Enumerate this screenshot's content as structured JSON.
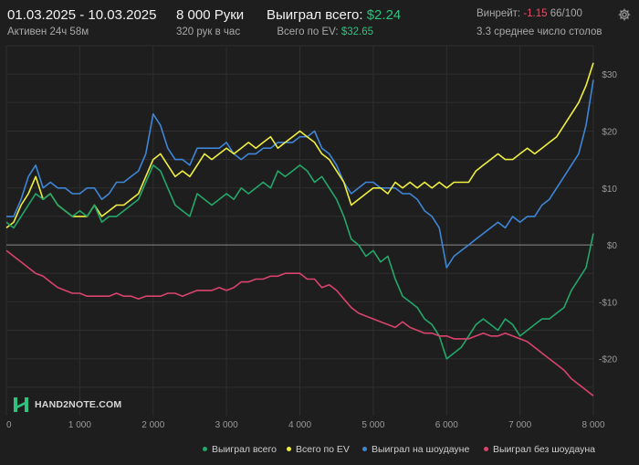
{
  "header": {
    "date_range": "01.03.2025 - 10.03.2025",
    "active_time": "Активен 24ч 58м",
    "hands": "8 000 Руки",
    "hands_per_hour": "320 рук в час",
    "won_total_label": "Выиграл всего:",
    "won_total_value": "$2.24",
    "ev_total_label": "Всего по EV:",
    "ev_total_value": "$32.65",
    "winrate_label": "Винрейт:",
    "winrate_value": "-1.15",
    "winrate_count": "66/100",
    "avg_tables": "3.3 среднее число столов"
  },
  "watermark": "HAND2NOTE.COM",
  "colors": {
    "background": "#1e1e1e",
    "won_total": "#23a86a",
    "ev_total": "#f0f040",
    "won_showdown": "#3f86d8",
    "won_no_showdown": "#d9436d",
    "positive": "#2ec27e",
    "negative": "#e0506a"
  },
  "legend": [
    {
      "key": "won_total",
      "label": "Выиграл всего",
      "color": "#23a86a"
    },
    {
      "key": "ev_total",
      "label": "Всего по EV",
      "color": "#f0f040"
    },
    {
      "key": "won_showdown",
      "label": "Выиграл на шоудауне",
      "color": "#3f86d8"
    },
    {
      "key": "won_no_showdown",
      "label": "Выиграл без шоудауна",
      "color": "#d9436d"
    }
  ],
  "chart_data": {
    "type": "line",
    "xlim": [
      0,
      8000
    ],
    "ylim": [
      -30,
      35
    ],
    "x_ticks": [
      0,
      1000,
      2000,
      3000,
      4000,
      5000,
      6000,
      7000,
      8000
    ],
    "x_tick_labels": [
      "0",
      "1 000",
      "2 000",
      "3 000",
      "4 000",
      "5 000",
      "6 000",
      "7 000",
      "8 000"
    ],
    "y_ticks": [
      -20,
      -10,
      0,
      10,
      20,
      30
    ],
    "y_tick_labels": [
      "-$20",
      "-$10",
      "$0",
      "$10",
      "$20",
      "$30"
    ],
    "grid": true,
    "legend_position": "bottom-right",
    "series": [
      {
        "key": "won_total",
        "name": "Выиграл всего",
        "x": [
          0,
          100,
          200,
          300,
          400,
          500,
          600,
          700,
          800,
          900,
          1000,
          1100,
          1200,
          1300,
          1400,
          1500,
          1600,
          1700,
          1800,
          1900,
          2000,
          2100,
          2200,
          2300,
          2400,
          2500,
          2600,
          2700,
          2800,
          2900,
          3000,
          3100,
          3200,
          3300,
          3400,
          3500,
          3600,
          3700,
          3800,
          3900,
          4000,
          4100,
          4200,
          4300,
          4400,
          4500,
          4600,
          4700,
          4800,
          4900,
          5000,
          5100,
          5200,
          5300,
          5400,
          5500,
          5600,
          5700,
          5800,
          5900,
          6000,
          6100,
          6200,
          6300,
          6400,
          6500,
          6600,
          6700,
          6800,
          6900,
          7000,
          7100,
          7200,
          7300,
          7400,
          7500,
          7600,
          7700,
          7800,
          7900,
          8000
        ],
        "y": [
          4,
          3,
          5,
          7,
          9,
          8,
          9,
          7,
          6,
          5,
          6,
          5,
          7,
          4,
          5,
          5,
          6,
          7,
          8,
          11,
          14,
          13,
          10,
          7,
          6,
          5,
          9,
          8,
          7,
          8,
          9,
          8,
          10,
          9,
          10,
          11,
          10,
          13,
          12,
          13,
          14,
          13,
          11,
          12,
          10,
          8,
          5,
          1,
          0,
          -2,
          -1,
          -3,
          -2,
          -6,
          -9,
          -10,
          -11,
          -13,
          -14,
          -16,
          -20,
          -19,
          -18,
          -16,
          -14,
          -13,
          -14,
          -15,
          -13,
          -14,
          -16,
          -15,
          -14,
          -13,
          -13,
          -12,
          -11,
          -8,
          -6,
          -4,
          2
        ]
      },
      {
        "key": "ev_total",
        "name": "Всего по EV",
        "x": [
          0,
          100,
          200,
          300,
          400,
          500,
          600,
          700,
          800,
          900,
          1000,
          1100,
          1200,
          1300,
          1400,
          1500,
          1600,
          1700,
          1800,
          1900,
          2000,
          2100,
          2200,
          2300,
          2400,
          2500,
          2600,
          2700,
          2800,
          2900,
          3000,
          3100,
          3200,
          3300,
          3400,
          3500,
          3600,
          3700,
          3800,
          3900,
          4000,
          4100,
          4200,
          4300,
          4400,
          4500,
          4600,
          4700,
          4800,
          4900,
          5000,
          5100,
          5200,
          5300,
          5400,
          5500,
          5600,
          5700,
          5800,
          5900,
          6000,
          6100,
          6200,
          6300,
          6400,
          6500,
          6600,
          6700,
          6800,
          6900,
          7000,
          7100,
          7200,
          7300,
          7400,
          7500,
          7600,
          7700,
          7800,
          7900,
          8000
        ],
        "y": [
          3,
          4,
          7,
          9,
          12,
          8,
          9,
          7,
          6,
          5,
          5,
          5,
          7,
          5,
          6,
          7,
          7,
          8,
          9,
          12,
          15,
          16,
          14,
          12,
          13,
          12,
          14,
          16,
          15,
          16,
          17,
          16,
          17,
          18,
          17,
          18,
          19,
          17,
          18,
          19,
          20,
          19,
          18,
          16,
          15,
          13,
          11,
          7,
          8,
          9,
          10,
          10,
          9,
          11,
          10,
          11,
          10,
          11,
          10,
          11,
          10,
          11,
          11,
          11,
          13,
          14,
          15,
          16,
          15,
          15,
          16,
          17,
          16,
          17,
          18,
          19,
          21,
          23,
          25,
          28,
          32
        ]
      },
      {
        "key": "won_showdown",
        "name": "Выиграл на шоудауне",
        "x": [
          0,
          100,
          200,
          300,
          400,
          500,
          600,
          700,
          800,
          900,
          1000,
          1100,
          1200,
          1300,
          1400,
          1500,
          1600,
          1700,
          1800,
          1900,
          2000,
          2100,
          2200,
          2300,
          2400,
          2500,
          2600,
          2700,
          2800,
          2900,
          3000,
          3100,
          3200,
          3300,
          3400,
          3500,
          3600,
          3700,
          3800,
          3900,
          4000,
          4100,
          4200,
          4300,
          4400,
          4500,
          4600,
          4700,
          4800,
          4900,
          5000,
          5100,
          5200,
          5300,
          5400,
          5500,
          5600,
          5700,
          5800,
          5900,
          6000,
          6100,
          6200,
          6300,
          6400,
          6500,
          6600,
          6700,
          6800,
          6900,
          7000,
          7100,
          7200,
          7300,
          7400,
          7500,
          7600,
          7700,
          7800,
          7900,
          8000
        ],
        "y": [
          5,
          5,
          8,
          12,
          14,
          10,
          11,
          10,
          10,
          9,
          9,
          10,
          10,
          8,
          9,
          11,
          11,
          12,
          13,
          16,
          23,
          21,
          17,
          15,
          15,
          14,
          17,
          17,
          17,
          17,
          18,
          16,
          15,
          16,
          16,
          17,
          17,
          18,
          18,
          18,
          19,
          19,
          20,
          17,
          16,
          14,
          11,
          9,
          10,
          11,
          11,
          10,
          10,
          10,
          9,
          9,
          8,
          6,
          5,
          3,
          -4,
          -2,
          -1,
          0,
          1,
          2,
          3,
          4,
          3,
          5,
          4,
          5,
          5,
          7,
          8,
          10,
          12,
          14,
          16,
          21,
          29
        ]
      },
      {
        "key": "won_no_showdown",
        "name": "Выиграл без шоудауна",
        "x": [
          0,
          100,
          200,
          300,
          400,
          500,
          600,
          700,
          800,
          900,
          1000,
          1100,
          1200,
          1300,
          1400,
          1500,
          1600,
          1700,
          1800,
          1900,
          2000,
          2100,
          2200,
          2300,
          2400,
          2500,
          2600,
          2700,
          2800,
          2900,
          3000,
          3100,
          3200,
          3300,
          3400,
          3500,
          3600,
          3700,
          3800,
          3900,
          4000,
          4100,
          4200,
          4300,
          4400,
          4500,
          4600,
          4700,
          4800,
          4900,
          5000,
          5100,
          5200,
          5300,
          5400,
          5500,
          5600,
          5700,
          5800,
          5900,
          6000,
          6100,
          6200,
          6300,
          6400,
          6500,
          6600,
          6700,
          6800,
          6900,
          7000,
          7100,
          7200,
          7300,
          7400,
          7500,
          7600,
          7700,
          7800,
          7900,
          8000
        ],
        "y": [
          -1,
          -2,
          -3,
          -4,
          -5,
          -5.5,
          -6.5,
          -7.5,
          -8,
          -8.5,
          -8.5,
          -9,
          -9,
          -9,
          -9,
          -8.5,
          -9,
          -9,
          -9.5,
          -9,
          -9,
          -9,
          -8.5,
          -8.5,
          -9,
          -8.5,
          -8,
          -8,
          -8,
          -7.5,
          -8,
          -7.5,
          -6.5,
          -6.5,
          -6,
          -6,
          -5.5,
          -5.5,
          -5,
          -5,
          -5,
          -6,
          -6,
          -7.5,
          -7,
          -8,
          -9.5,
          -11,
          -12,
          -12.5,
          -13,
          -13.5,
          -14,
          -14.5,
          -13.5,
          -14.5,
          -15,
          -15.5,
          -15.5,
          -16,
          -16,
          -16.5,
          -16.5,
          -16.5,
          -16,
          -15.5,
          -16,
          -16,
          -15.5,
          -16,
          -16.5,
          -17,
          -18,
          -19,
          -20,
          -21,
          -22,
          -23.5,
          -24.5,
          -25.5,
          -26.5
        ]
      }
    ]
  }
}
